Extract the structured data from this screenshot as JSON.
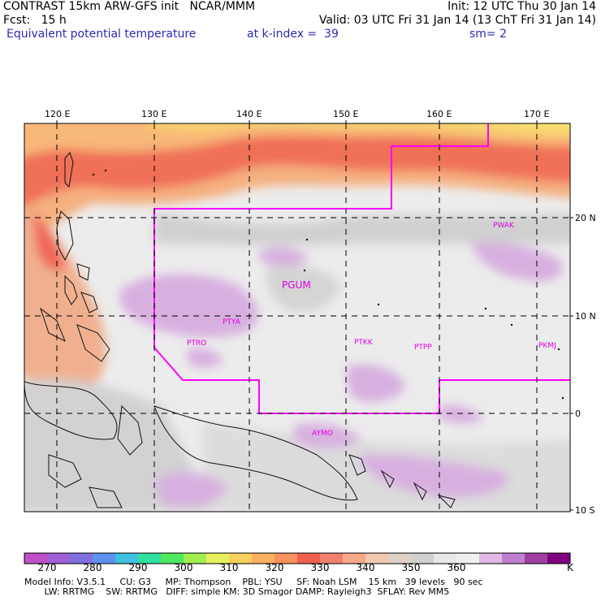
{
  "header": {
    "title": "CONTRAST 15km ARW-GFS init   NCAR/MMM",
    "init": "Init: 12 UTC Thu 30 Jan 14",
    "fcst": "Fcst:   15 h",
    "valid": "Valid: 03 UTC Fri 31 Jan 14 (13 ChT Fri 31 Jan 14)",
    "field": "Equivalent potential temperature",
    "level": "at k-index =  39",
    "smooth": "sm= 2"
  },
  "axes": {
    "lon_labels": [
      "120 E",
      "130 E",
      "140 E",
      "150 E",
      "160 E",
      "170 E"
    ],
    "lat_labels": [
      "20 N",
      "10 N",
      "0",
      "10 S"
    ]
  },
  "stations": [
    "PGUM",
    "PTYA",
    "PTRO",
    "PTKK",
    "PTPP",
    "PKMJ",
    "PWAK",
    "AYMO"
  ],
  "colorbar": {
    "labels": [
      "270",
      "280",
      "290",
      "300",
      "310",
      "320",
      "330",
      "340",
      "350",
      "360"
    ],
    "unit": "K",
    "colors": [
      "#c050c8",
      "#a060d8",
      "#8070e0",
      "#6090f0",
      "#40c0e0",
      "#30e0a0",
      "#50e860",
      "#a0f050",
      "#e8f060",
      "#f8d060",
      "#f8b060",
      "#f89060",
      "#f06050",
      "#f08070",
      "#f8a888",
      "#f0c8b0",
      "#e0d0c8",
      "#d0d0d0",
      "#e8e8e8",
      "#f0f0f0",
      "#e0b8e8",
      "#c080d0",
      "#a040a0",
      "#800080"
    ]
  },
  "model_info": {
    "line1": "Model Info: V3.5.1     CU: G3     MP: Thompson    PBL: YSU     SF: Noah LSM    15 km   39 levels   90 sec",
    "line2": "       LW: RRTMG    SW: RRTMG   DIFF: simple KM: 3D Smagor DAMP: Rayleigh3  SFLAY: Rev MM5"
  }
}
